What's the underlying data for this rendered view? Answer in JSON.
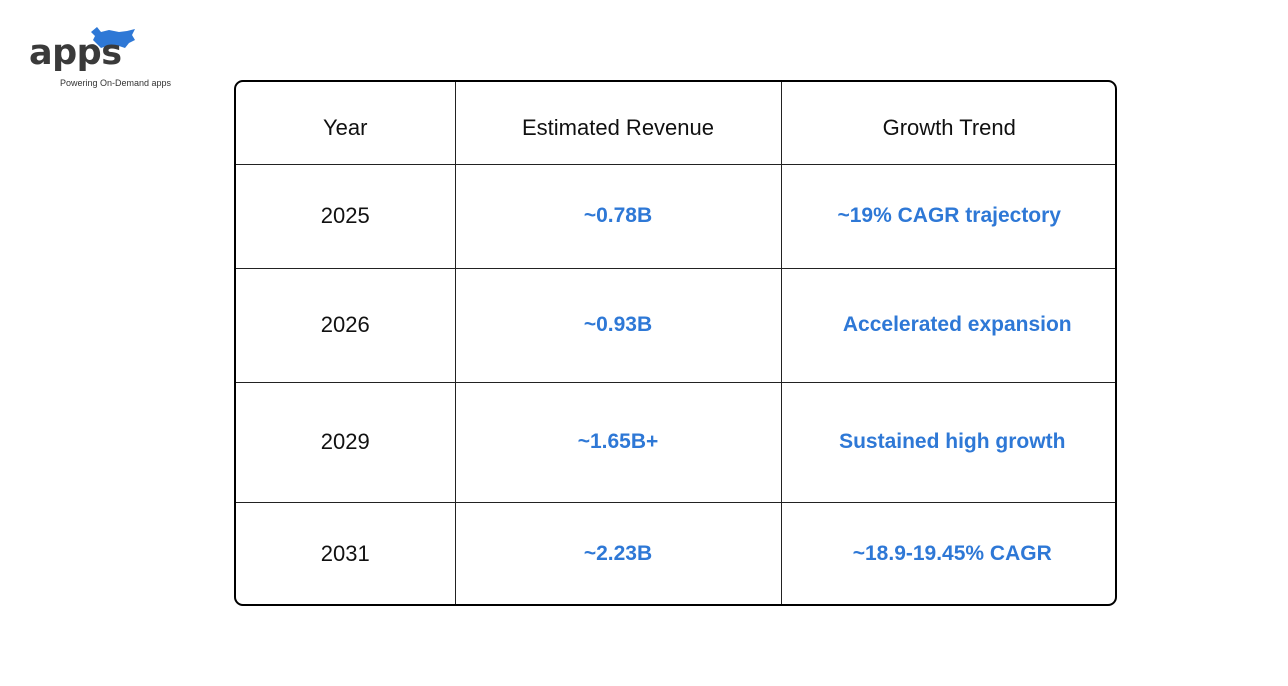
{
  "brand": {
    "name": "apps",
    "tagline": "Powering On-Demand apps",
    "color": "#2e78d6"
  },
  "table": {
    "headers": [
      "Year",
      "Estimated Revenue",
      "Growth Trend"
    ],
    "rows": [
      {
        "year": "2025",
        "revenue": "~0.78B",
        "trend": "~19% CAGR trajectory"
      },
      {
        "year": "2026",
        "revenue": "~0.93B",
        "trend": "Accelerated expansion"
      },
      {
        "year": "2029",
        "revenue": "~1.65B+",
        "trend": "Sustained high growth"
      },
      {
        "year": "2031",
        "revenue": "~2.23B",
        "trend": "~18.9-19.45% CAGR"
      }
    ],
    "value_color": "#2e78d6",
    "border_color": "#000000"
  }
}
